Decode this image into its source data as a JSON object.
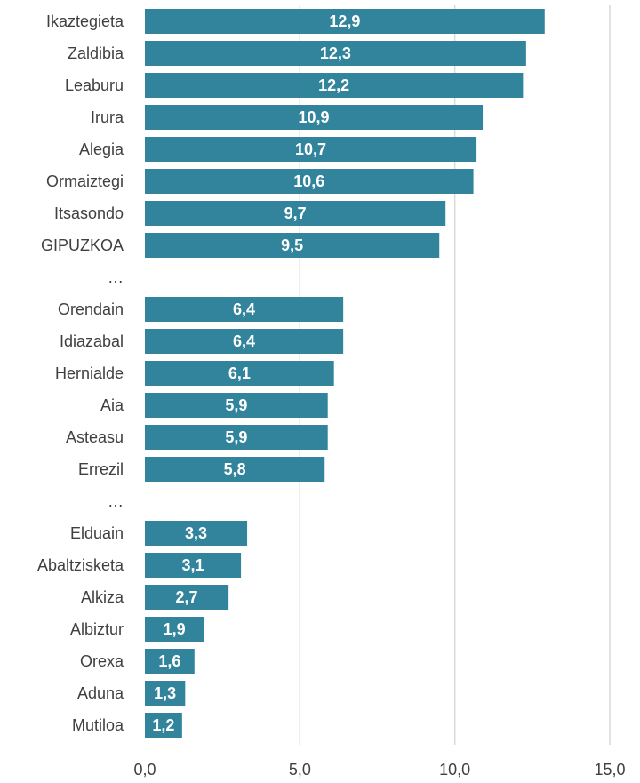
{
  "chart_data": {
    "type": "bar",
    "orientation": "horizontal",
    "categories": [
      "Ikaztegieta",
      "Zaldibia",
      "Leaburu",
      "Irura",
      "Alegia",
      "Ormaiztegi",
      "Itsasondo",
      "GIPUZKOA",
      "…",
      "Orendain",
      "Idiazabal",
      "Hernialde",
      "Aia",
      "Asteasu",
      "Errezil",
      "…",
      "Elduain",
      "Abaltzisketa",
      "Alkiza",
      "Albiztur",
      "Orexa",
      "Aduna",
      "Mutiloa"
    ],
    "values": [
      12.9,
      12.3,
      12.2,
      10.9,
      10.7,
      10.6,
      9.7,
      9.5,
      null,
      6.4,
      6.4,
      6.1,
      5.9,
      5.9,
      5.8,
      null,
      3.3,
      3.1,
      2.7,
      1.9,
      1.6,
      1.3,
      1.2
    ],
    "data_labels": [
      "12,9",
      "12,3",
      "12,2",
      "10,9",
      "10,7",
      "10,6",
      "9,7",
      "9,5",
      "",
      "6,4",
      "6,4",
      "6,1",
      "5,9",
      "5,9",
      "5,8",
      "",
      "3,3",
      "3,1",
      "2,7",
      "1,9",
      "1,6",
      "1,3",
      "1,2"
    ],
    "xticks": [
      0,
      5,
      10,
      15
    ],
    "xtick_labels": [
      "0,0",
      "5,0",
      "10,0",
      "15,0"
    ],
    "xlim": [
      0,
      15
    ],
    "grid": true,
    "bar_color": "#31849b",
    "grid_color": "#d9d9d9",
    "label_color": "#404040",
    "data_label_color": "#ffffff"
  }
}
